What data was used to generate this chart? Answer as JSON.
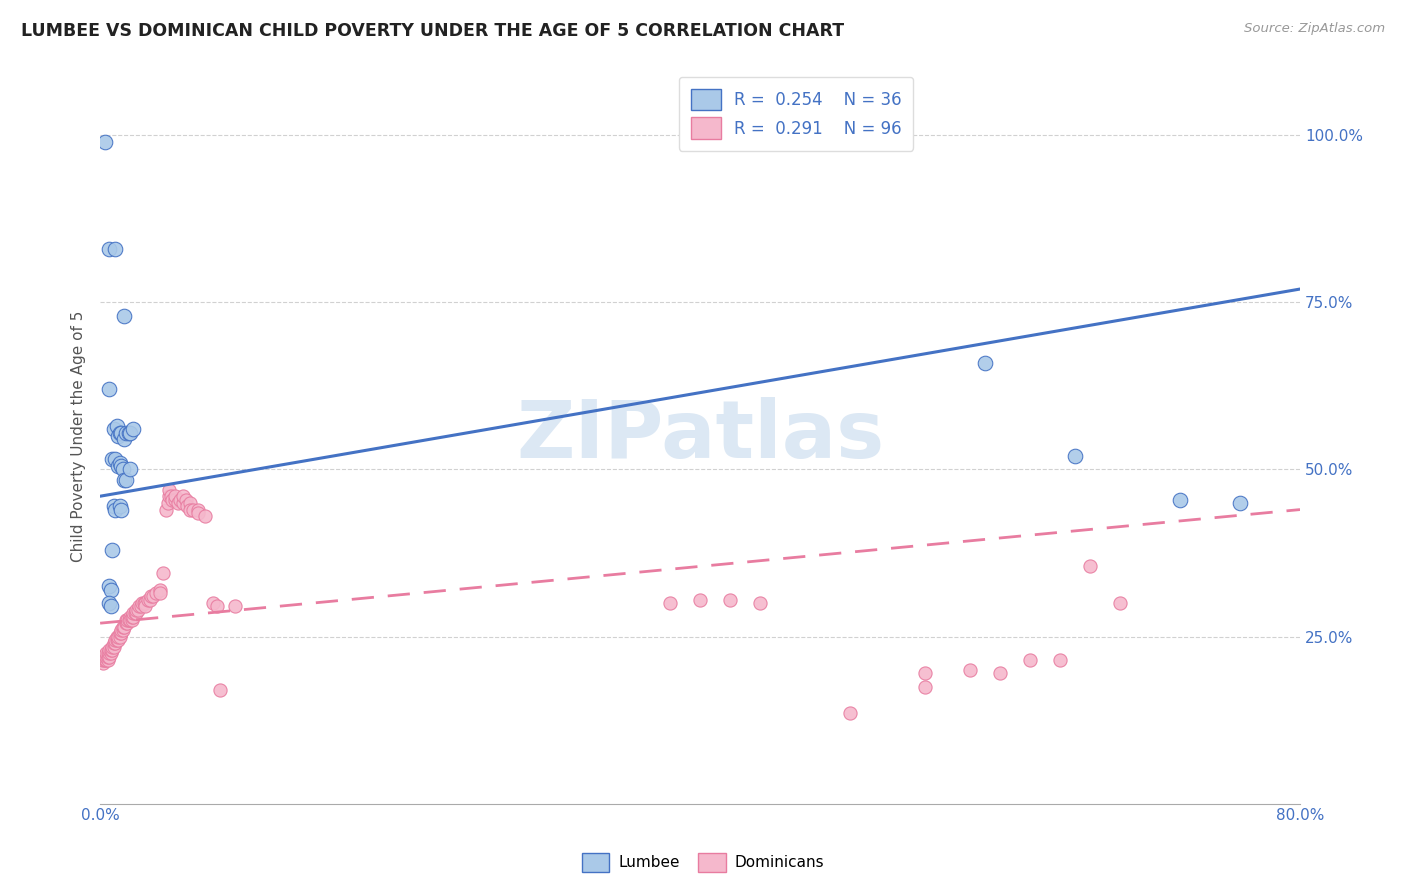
{
  "title": "LUMBEE VS DOMINICAN CHILD POVERTY UNDER THE AGE OF 5 CORRELATION CHART",
  "source": "Source: ZipAtlas.com",
  "ylabel": "Child Poverty Under the Age of 5",
  "ytick_labels": [
    "25.0%",
    "50.0%",
    "75.0%",
    "100.0%"
  ],
  "ytick_values": [
    0.25,
    0.5,
    0.75,
    1.0
  ],
  "legend_labels": [
    "Lumbee",
    "Dominicans"
  ],
  "blue_color": "#aac9e8",
  "pink_color": "#f5b8cc",
  "line_blue": "#4472c4",
  "line_pink": "#e87ca0",
  "blue_scatter": [
    [
      0.003,
      0.99
    ],
    [
      0.006,
      0.83
    ],
    [
      0.01,
      0.83
    ],
    [
      0.016,
      0.73
    ],
    [
      0.006,
      0.62
    ],
    [
      0.009,
      0.56
    ],
    [
      0.011,
      0.565
    ],
    [
      0.012,
      0.55
    ],
    [
      0.013,
      0.555
    ],
    [
      0.014,
      0.555
    ],
    [
      0.016,
      0.545
    ],
    [
      0.017,
      0.555
    ],
    [
      0.019,
      0.555
    ],
    [
      0.02,
      0.555
    ],
    [
      0.022,
      0.56
    ],
    [
      0.008,
      0.515
    ],
    [
      0.01,
      0.515
    ],
    [
      0.012,
      0.505
    ],
    [
      0.013,
      0.51
    ],
    [
      0.014,
      0.505
    ],
    [
      0.015,
      0.5
    ],
    [
      0.016,
      0.485
    ],
    [
      0.017,
      0.485
    ],
    [
      0.02,
      0.5
    ],
    [
      0.009,
      0.445
    ],
    [
      0.01,
      0.44
    ],
    [
      0.013,
      0.445
    ],
    [
      0.014,
      0.44
    ],
    [
      0.008,
      0.38
    ],
    [
      0.006,
      0.325
    ],
    [
      0.007,
      0.32
    ],
    [
      0.006,
      0.3
    ],
    [
      0.007,
      0.295
    ],
    [
      0.59,
      0.66
    ],
    [
      0.65,
      0.52
    ],
    [
      0.72,
      0.455
    ],
    [
      0.76,
      0.45
    ]
  ],
  "pink_scatter": [
    [
      0.001,
      0.215
    ],
    [
      0.001,
      0.22
    ],
    [
      0.002,
      0.21
    ],
    [
      0.002,
      0.215
    ],
    [
      0.002,
      0.22
    ],
    [
      0.003,
      0.215
    ],
    [
      0.003,
      0.22
    ],
    [
      0.004,
      0.215
    ],
    [
      0.004,
      0.22
    ],
    [
      0.004,
      0.225
    ],
    [
      0.005,
      0.215
    ],
    [
      0.005,
      0.22
    ],
    [
      0.005,
      0.225
    ],
    [
      0.006,
      0.22
    ],
    [
      0.006,
      0.225
    ],
    [
      0.006,
      0.23
    ],
    [
      0.007,
      0.225
    ],
    [
      0.007,
      0.23
    ],
    [
      0.008,
      0.23
    ],
    [
      0.008,
      0.235
    ],
    [
      0.009,
      0.235
    ],
    [
      0.009,
      0.24
    ],
    [
      0.01,
      0.24
    ],
    [
      0.01,
      0.245
    ],
    [
      0.011,
      0.245
    ],
    [
      0.011,
      0.25
    ],
    [
      0.012,
      0.245
    ],
    [
      0.012,
      0.25
    ],
    [
      0.013,
      0.25
    ],
    [
      0.013,
      0.255
    ],
    [
      0.014,
      0.255
    ],
    [
      0.014,
      0.26
    ],
    [
      0.015,
      0.26
    ],
    [
      0.015,
      0.265
    ],
    [
      0.016,
      0.265
    ],
    [
      0.017,
      0.27
    ],
    [
      0.017,
      0.275
    ],
    [
      0.018,
      0.27
    ],
    [
      0.018,
      0.275
    ],
    [
      0.019,
      0.275
    ],
    [
      0.02,
      0.28
    ],
    [
      0.02,
      0.275
    ],
    [
      0.021,
      0.275
    ],
    [
      0.021,
      0.28
    ],
    [
      0.022,
      0.28
    ],
    [
      0.022,
      0.285
    ],
    [
      0.023,
      0.285
    ],
    [
      0.024,
      0.285
    ],
    [
      0.024,
      0.29
    ],
    [
      0.025,
      0.29
    ],
    [
      0.026,
      0.295
    ],
    [
      0.027,
      0.295
    ],
    [
      0.028,
      0.3
    ],
    [
      0.029,
      0.3
    ],
    [
      0.03,
      0.3
    ],
    [
      0.03,
      0.295
    ],
    [
      0.032,
      0.305
    ],
    [
      0.033,
      0.305
    ],
    [
      0.034,
      0.31
    ],
    [
      0.035,
      0.31
    ],
    [
      0.037,
      0.315
    ],
    [
      0.04,
      0.32
    ],
    [
      0.04,
      0.315
    ],
    [
      0.042,
      0.345
    ],
    [
      0.044,
      0.44
    ],
    [
      0.045,
      0.45
    ],
    [
      0.046,
      0.46
    ],
    [
      0.046,
      0.47
    ],
    [
      0.047,
      0.46
    ],
    [
      0.048,
      0.455
    ],
    [
      0.05,
      0.455
    ],
    [
      0.05,
      0.46
    ],
    [
      0.052,
      0.45
    ],
    [
      0.053,
      0.455
    ],
    [
      0.055,
      0.45
    ],
    [
      0.055,
      0.46
    ],
    [
      0.057,
      0.455
    ],
    [
      0.058,
      0.445
    ],
    [
      0.06,
      0.45
    ],
    [
      0.06,
      0.44
    ],
    [
      0.062,
      0.44
    ],
    [
      0.065,
      0.44
    ],
    [
      0.065,
      0.435
    ],
    [
      0.07,
      0.43
    ],
    [
      0.075,
      0.3
    ],
    [
      0.078,
      0.295
    ],
    [
      0.08,
      0.17
    ],
    [
      0.09,
      0.295
    ],
    [
      0.38,
      0.3
    ],
    [
      0.4,
      0.305
    ],
    [
      0.42,
      0.305
    ],
    [
      0.44,
      0.3
    ],
    [
      0.5,
      0.135
    ],
    [
      0.55,
      0.195
    ],
    [
      0.58,
      0.2
    ],
    [
      0.6,
      0.195
    ],
    [
      0.62,
      0.215
    ],
    [
      0.64,
      0.215
    ],
    [
      0.66,
      0.355
    ],
    [
      0.68,
      0.3
    ],
    [
      0.55,
      0.175
    ]
  ],
  "xlim": [
    0.0,
    0.8
  ],
  "ylim": [
    0.0,
    1.1
  ],
  "blue_line_x": [
    0.0,
    0.8
  ],
  "blue_line_y": [
    0.46,
    0.77
  ],
  "pink_line_x": [
    0.0,
    0.8
  ],
  "pink_line_y": [
    0.27,
    0.44
  ]
}
